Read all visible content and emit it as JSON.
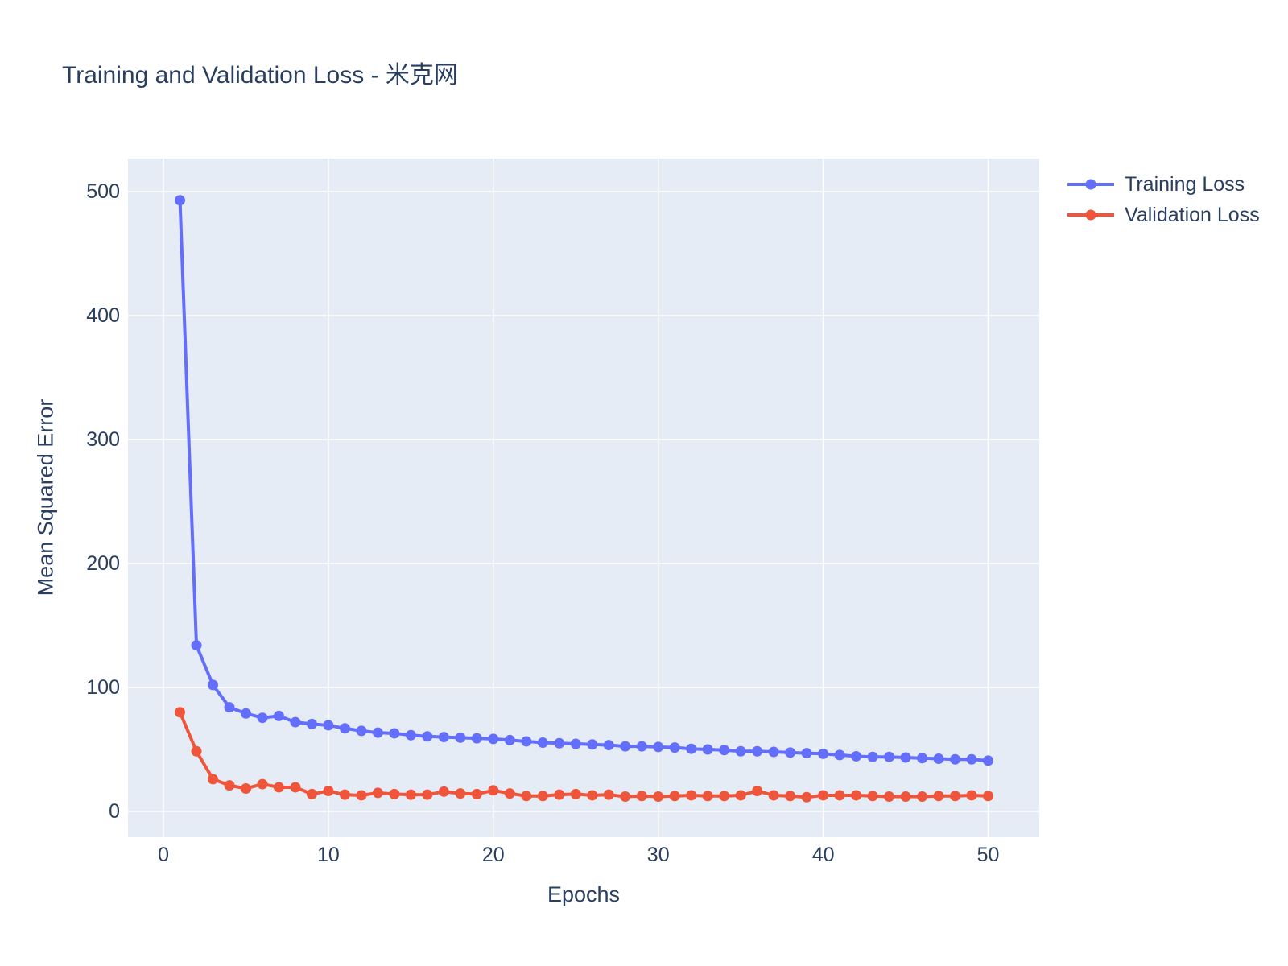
{
  "chart_data": {
    "type": "line",
    "title": "Training and Validation Loss - 米克网",
    "xlabel": "Epochs",
    "ylabel": "Mean Squared Error",
    "x": [
      1,
      2,
      3,
      4,
      5,
      6,
      7,
      8,
      9,
      10,
      11,
      12,
      13,
      14,
      15,
      16,
      17,
      18,
      19,
      20,
      21,
      22,
      23,
      24,
      25,
      26,
      27,
      28,
      29,
      30,
      31,
      32,
      33,
      34,
      35,
      36,
      37,
      38,
      39,
      40,
      41,
      42,
      43,
      44,
      45,
      46,
      47,
      48,
      49,
      50
    ],
    "series": [
      {
        "name": "Training Loss",
        "color": "#636EFA",
        "values": [
          493,
          134,
          102,
          84,
          79,
          75.5,
          77,
          72,
          70.5,
          69.5,
          67,
          65,
          63.5,
          63,
          61.5,
          60.5,
          60,
          59.5,
          59,
          58.5,
          57.5,
          56.5,
          55.5,
          55,
          54.5,
          54,
          53.5,
          52.5,
          52.5,
          52,
          51.5,
          50.5,
          50,
          49.5,
          48.5,
          48.5,
          48,
          47.5,
          47,
          46.5,
          45.5,
          44.5,
          44,
          44,
          43.5,
          43,
          42.5,
          42,
          42,
          41
        ]
      },
      {
        "name": "Validation Loss",
        "color": "#EF553B",
        "values": [
          80,
          48.5,
          26,
          21,
          18.5,
          22,
          19.5,
          19.5,
          14,
          16.5,
          13.5,
          13,
          15,
          14,
          13.5,
          13.5,
          16,
          14.5,
          14,
          17,
          14.5,
          12.5,
          12.5,
          13.5,
          14,
          13,
          13.5,
          12,
          12.5,
          12,
          12.5,
          13,
          12.5,
          12.5,
          13,
          16.5,
          13,
          12.5,
          11.5,
          13,
          13,
          13,
          12.5,
          12,
          12,
          12,
          12.5,
          12.5,
          13,
          12.5
        ]
      }
    ],
    "xticks": [
      0,
      10,
      20,
      30,
      40,
      50
    ],
    "yticks": [
      0,
      100,
      200,
      300,
      400,
      500
    ],
    "xlim": [
      -2.15,
      53.1
    ],
    "ylim": [
      -20.8,
      526.6
    ],
    "grid": true,
    "legend_position": "right-outside-top",
    "colors": {
      "plot_bg": "#E5ECF6",
      "grid": "#FFFFFF",
      "text": "#2a3f5f"
    }
  }
}
